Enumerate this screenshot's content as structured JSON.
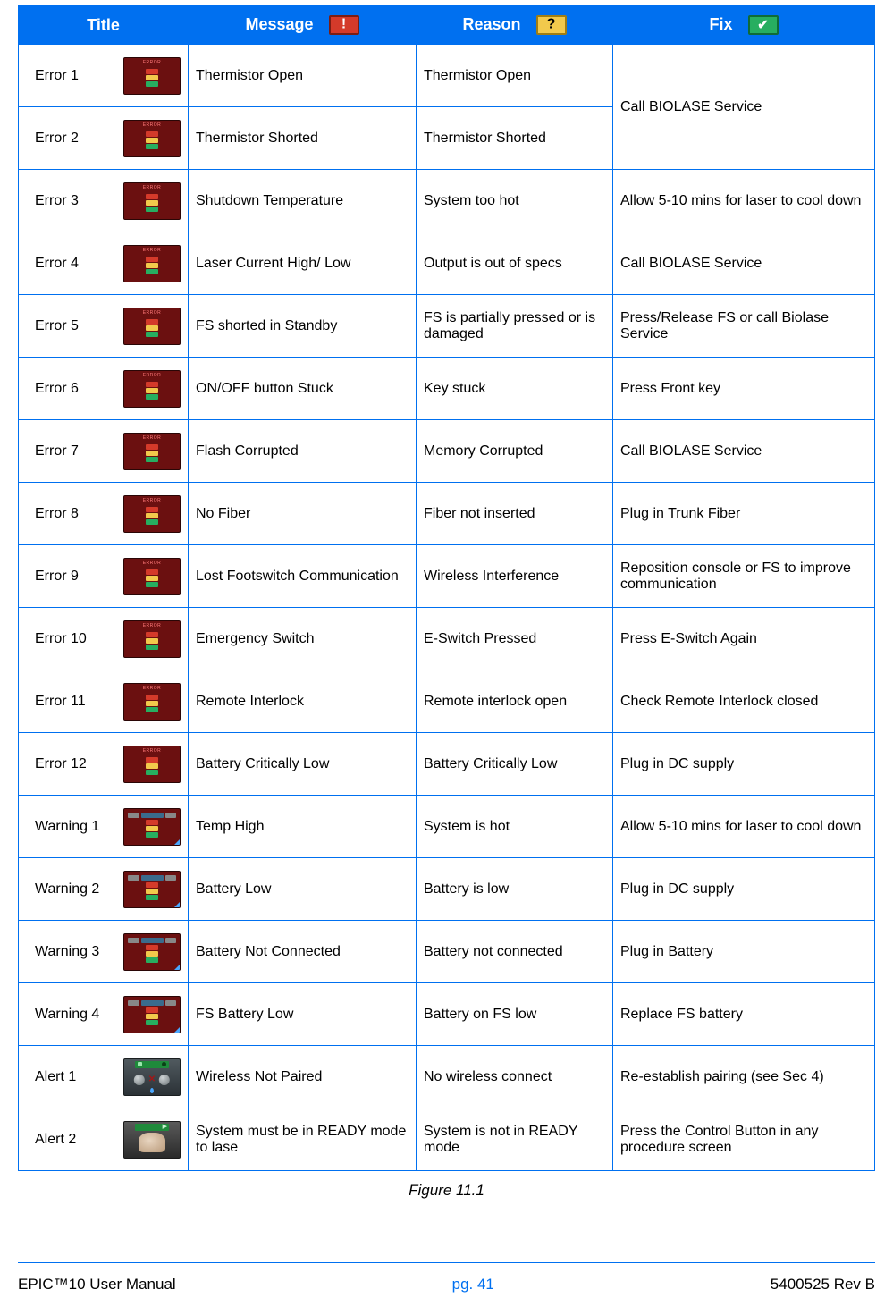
{
  "headers": {
    "title": "Title",
    "message": "Message",
    "reason": "Reason",
    "fix": "Fix"
  },
  "rows": [
    {
      "title": "Error 1",
      "kind": "error",
      "message": "Thermistor Open",
      "reason": "Thermistor Open",
      "fix": "Call BIOLASE Service",
      "fixMerge": 2
    },
    {
      "title": "Error 2",
      "kind": "error",
      "message": "Thermistor Shorted",
      "reason": "Thermistor Shorted",
      "fix": "",
      "fixMerge": 0
    },
    {
      "title": "Error 3",
      "kind": "error",
      "message": "Shutdown Temperature",
      "reason": "System too hot",
      "fix": "Allow 5-10 mins for laser to cool down"
    },
    {
      "title": "Error 4",
      "kind": "error",
      "message": "Laser Current High/ Low",
      "reason": "Output is out of specs",
      "fix": "Call BIOLASE Service"
    },
    {
      "title": "Error 5",
      "kind": "error",
      "message": "FS shorted in Standby",
      "reason": "FS is partially pressed or is damaged",
      "fix": "Press/Release FS or call Biolase Service"
    },
    {
      "title": "Error 6",
      "kind": "error",
      "message": "ON/OFF button Stuck",
      "reason": "Key stuck",
      "fix": "Press Front key"
    },
    {
      "title": "Error 7",
      "kind": "error",
      "message": "Flash Corrupted",
      "reason": "Memory Corrupted",
      "fix": "Call BIOLASE Service"
    },
    {
      "title": "Error 8",
      "kind": "error",
      "message": "No Fiber",
      "reason": "Fiber not inserted",
      "fix": "Plug in Trunk Fiber"
    },
    {
      "title": "Error 9",
      "kind": "error",
      "message": "Lost Footswitch Communication",
      "reason": "Wireless Interference",
      "fix": "Reposition console or FS to improve communication"
    },
    {
      "title": "Error 10",
      "kind": "error",
      "message": "Emergency Switch",
      "reason": "E-Switch Pressed",
      "fix": "Press E-Switch Again"
    },
    {
      "title": "Error 11",
      "kind": "error",
      "message": "Remote Interlock",
      "reason": "Remote interlock open",
      "fix": "Check Remote Interlock closed"
    },
    {
      "title": "Error 12",
      "kind": "error",
      "message": "Battery Critically Low",
      "reason": "Battery Critically Low",
      "fix": "Plug in DC supply"
    },
    {
      "title": "Warning 1",
      "kind": "warning",
      "message": "Temp High",
      "reason": "System is hot",
      "fix": "Allow 5-10 mins for laser to cool down"
    },
    {
      "title": "Warning 2",
      "kind": "warning",
      "message": "Battery Low",
      "reason": "Battery is low",
      "fix": "Plug in DC supply"
    },
    {
      "title": "Warning 3",
      "kind": "warning",
      "message": "Battery Not Connected",
      "reason": "Battery not connected",
      "fix": "Plug in Battery"
    },
    {
      "title": "Warning 4",
      "kind": "warning",
      "message": "FS Battery Low",
      "reason": "Battery on FS low",
      "fix": "Replace FS battery"
    },
    {
      "title": "Alert 1",
      "kind": "alert1",
      "message": "Wireless Not Paired",
      "reason": "No wireless connect",
      "fix": "Re-establish pairing (see Sec 4)"
    },
    {
      "title": "Alert 2",
      "kind": "alert2",
      "message": "System must be in READY mode to lase",
      "reason": "System is not in READY mode",
      "fix": "Press the Control Button in any procedure screen"
    }
  ],
  "caption": "Figure 11.1",
  "footer": {
    "left": "EPIC™10 User Manual",
    "center": "pg. 41",
    "right": "5400525 Rev B"
  },
  "colors": {
    "header_bg": "#0070f0",
    "header_fg": "#ffffff",
    "border": "#0070f0",
    "icon_red": "#d43a2a",
    "icon_yellow": "#f2c94c",
    "icon_green": "#27ae60"
  }
}
